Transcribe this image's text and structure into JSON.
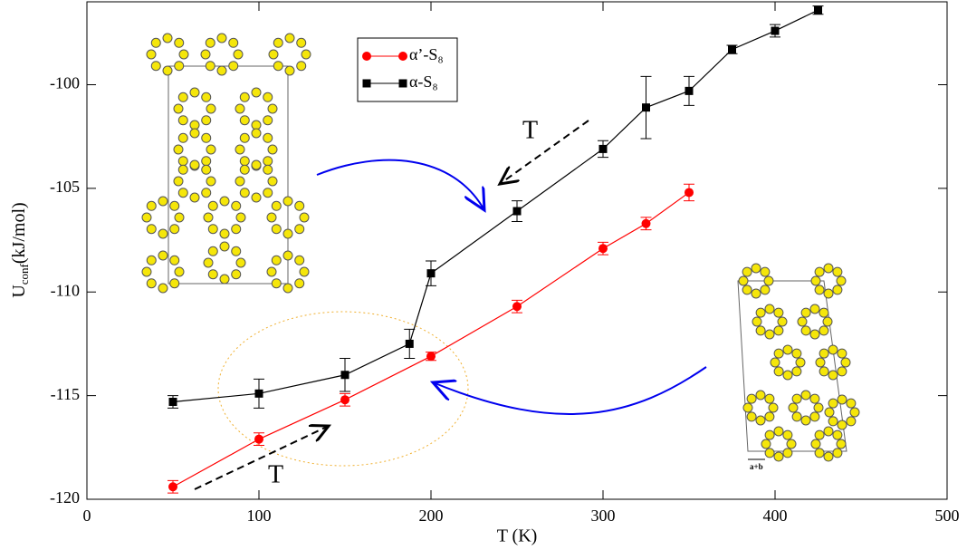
{
  "chart_data": {
    "type": "line",
    "x_label": "T (K)",
    "y_label": {
      "main": "U",
      "sub": "conf",
      "unit": "(kJ/mol)"
    },
    "xlim": [
      0,
      500
    ],
    "xticks": [
      0,
      100,
      200,
      300,
      400,
      500
    ],
    "ylim": [
      -120,
      -96
    ],
    "yticks": [
      -120,
      -115,
      -110,
      -105,
      -100
    ],
    "legend": "upper-left",
    "series": [
      {
        "name": "α’-S₈",
        "color": "#ff0000",
        "marker": "circle",
        "x": [
          50,
          100,
          150,
          200,
          250,
          300,
          325,
          350
        ],
        "values": [
          -119.4,
          -117.1,
          -115.2,
          -113.1,
          -110.7,
          -107.9,
          -106.7,
          -105.2
        ],
        "errors": [
          0.3,
          0.3,
          0.3,
          0.2,
          0.3,
          0.3,
          0.3,
          0.4
        ]
      },
      {
        "name": "α-S₈",
        "color": "#000000",
        "marker": "square",
        "x": [
          50,
          100,
          150,
          187.5,
          200,
          250,
          300,
          325,
          350,
          375,
          400,
          425
        ],
        "values": [
          -115.3,
          -114.9,
          -114.0,
          -112.5,
          -109.1,
          -106.1,
          -103.1,
          -101.1,
          -100.3,
          -98.3,
          -97.4,
          -96.4
        ],
        "errors": [
          0.3,
          0.7,
          0.8,
          0.7,
          0.6,
          0.5,
          0.4,
          1.5,
          0.7,
          0.2,
          0.3,
          0.2
        ]
      }
    ],
    "annotations": [
      "T",
      "T",
      "a+b"
    ]
  }
}
